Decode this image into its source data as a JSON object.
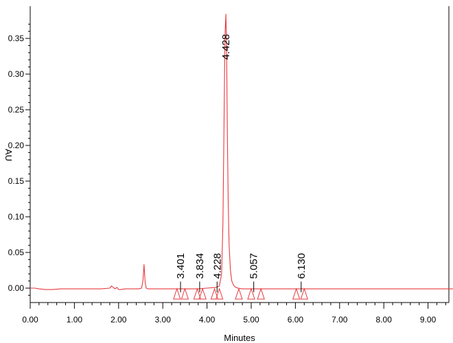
{
  "chart_data": {
    "type": "line",
    "title": "",
    "xlabel": "Minutes",
    "ylabel": "AU",
    "xlim": [
      0.0,
      9.6
    ],
    "ylim": [
      -0.02,
      0.385
    ],
    "x_ticks": [
      "0.00",
      "1.00",
      "2.00",
      "3.00",
      "4.00",
      "5.00",
      "6.00",
      "7.00",
      "8.00",
      "9.00"
    ],
    "x_tick_values": [
      0,
      1,
      2,
      3,
      4,
      5,
      6,
      7,
      8,
      9
    ],
    "y_ticks": [
      "0.00",
      "0.05",
      "0.10",
      "0.15",
      "0.20",
      "0.25",
      "0.30",
      "0.35"
    ],
    "y_tick_values": [
      0,
      0.05,
      0.1,
      0.15,
      0.2,
      0.25,
      0.3,
      0.35
    ],
    "grid": false,
    "colors": {
      "trace": "#e8393d",
      "axis": "#000000"
    },
    "series": [
      {
        "x": [
          0.0,
          0.1,
          0.2,
          0.35,
          0.5,
          0.7,
          1.0,
          1.3,
          1.6,
          1.8,
          1.84,
          1.88,
          1.92,
          1.96,
          2.0,
          2.05,
          2.15,
          2.3,
          2.45,
          2.52,
          2.55,
          2.575,
          2.6,
          2.625,
          2.66,
          2.72,
          2.85,
          3.0,
          3.2,
          3.4,
          3.6,
          3.8,
          4.0,
          4.2,
          4.28,
          4.33,
          4.36,
          4.38,
          4.4,
          4.41,
          4.428,
          4.445,
          4.46,
          4.48,
          4.5,
          4.53,
          4.56,
          4.6,
          4.65,
          4.7,
          4.8,
          5.0,
          5.5,
          6.0,
          6.5,
          7.0,
          7.5,
          8.0,
          8.5,
          9.0,
          9.6
        ],
        "y": [
          0.0,
          0.0,
          -0.001,
          -0.002,
          -0.002,
          -0.001,
          -0.001,
          -0.001,
          -0.001,
          0.0,
          0.003,
          0.001,
          -0.001,
          0.001,
          -0.002,
          -0.002,
          -0.001,
          -0.001,
          -0.001,
          0.0,
          0.01,
          0.033,
          0.008,
          0.0,
          -0.001,
          -0.001,
          -0.001,
          -0.001,
          -0.001,
          -0.001,
          -0.001,
          -0.001,
          0.0,
          0.001,
          0.003,
          0.02,
          0.09,
          0.2,
          0.32,
          0.36,
          0.384,
          0.32,
          0.22,
          0.12,
          0.06,
          0.025,
          0.01,
          0.004,
          0.001,
          0.0,
          -0.001,
          -0.001,
          -0.001,
          -0.001,
          -0.001,
          -0.001,
          -0.001,
          -0.001,
          -0.001,
          -0.001,
          -0.001
        ]
      }
    ],
    "peak_labels": [
      {
        "label": "3.401",
        "x": 3.401,
        "y": 0.013
      },
      {
        "label": "3.834",
        "x": 3.834,
        "y": 0.013
      },
      {
        "label": "4.228",
        "x": 4.228,
        "y": 0.013
      },
      {
        "label": "4.428",
        "x": 4.428,
        "y": 0.32
      },
      {
        "label": "5.057",
        "x": 5.057,
        "y": 0.013
      },
      {
        "label": "6.130",
        "x": 6.13,
        "y": 0.013
      }
    ],
    "integration_markers_x": [
      3.32,
      3.5,
      3.78,
      3.9,
      4.17,
      4.28,
      4.72,
      5.0,
      5.22,
      6.02,
      6.2
    ]
  }
}
